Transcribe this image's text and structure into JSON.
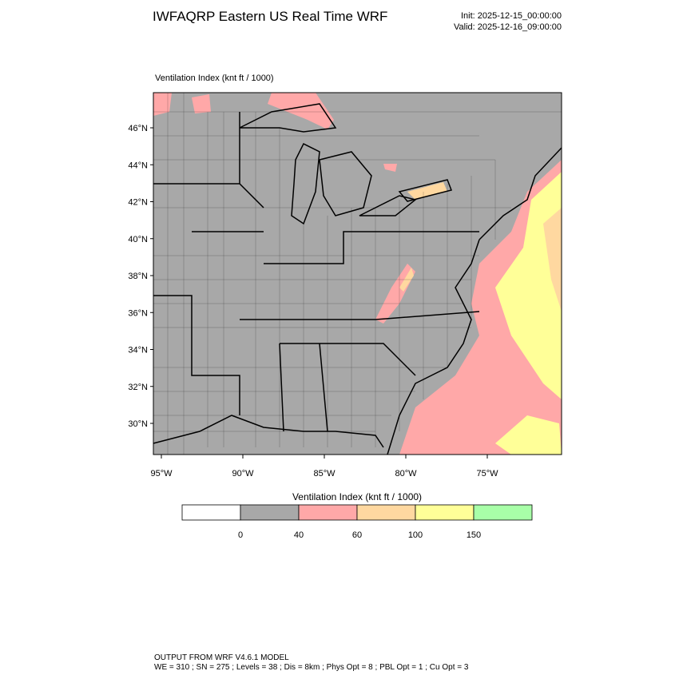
{
  "header": {
    "title": "IWFAQRP Eastern US Real Time WRF",
    "init": "Init: 2025-12-15_00:00:00",
    "valid": "Valid: 2025-12-16_09:00:00"
  },
  "map": {
    "label": "Ventilation Index   (knt ft / 1000)",
    "lat_labels": [
      "46°N",
      "44°N",
      "42°N",
      "40°N",
      "38°N",
      "36°N",
      "34°N",
      "32°N",
      "30°N"
    ],
    "lon_labels": [
      "95°W",
      "90°W",
      "85°W",
      "80°W",
      "75°W"
    ]
  },
  "colorbar": {
    "title": "Ventilation Index  (knt ft / 1000)",
    "colors": [
      "#ffffff",
      "#a8a8a8",
      "#ffa8a8",
      "#ffd8a0",
      "#ffff98",
      "#a8ffa8"
    ],
    "labels": [
      "0",
      "40",
      "60",
      "100",
      "150"
    ]
  },
  "footer": {
    "line1": "OUTPUT FROM WRF V4.6.1 MODEL",
    "line2": "WE = 310 ; SN = 275 ; Levels = 38 ; Dis = 8km ; Phys Opt = 8 ; PBL Opt = 1 ; Cu Opt = 3"
  }
}
